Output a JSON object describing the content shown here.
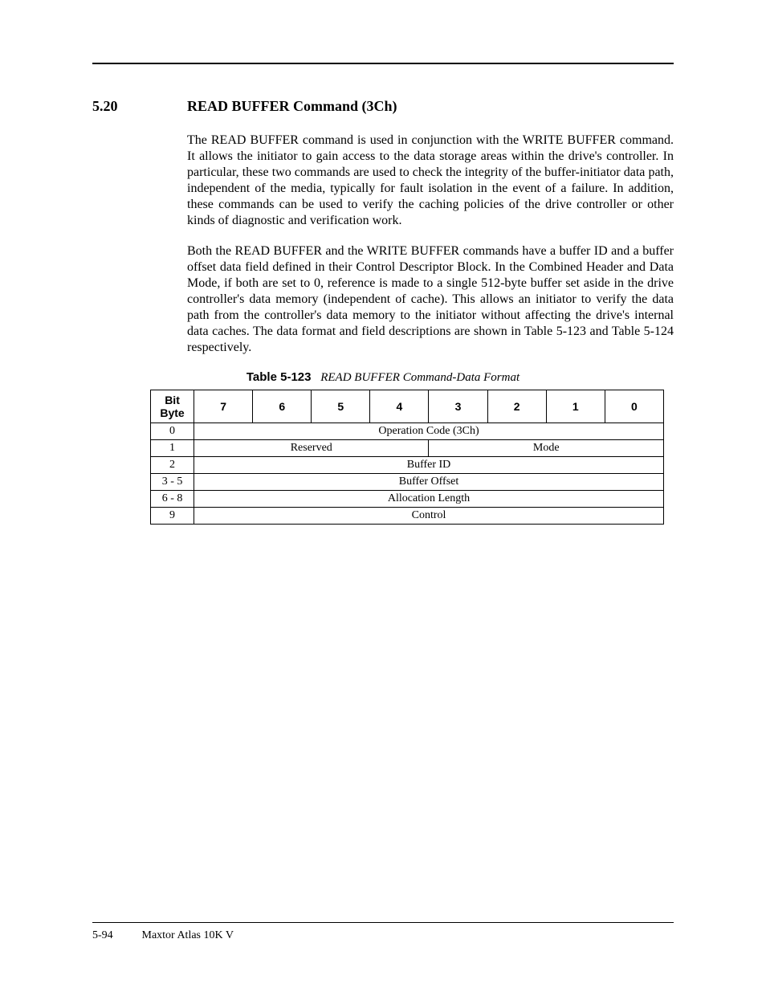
{
  "section": {
    "number": "5.20",
    "title": "READ BUFFER Command (3Ch)"
  },
  "paragraphs": {
    "p1": "The READ BUFFER command is used in conjunction with the WRITE BUFFER command. It allows the initiator to gain access to the data storage areas within the drive's controller. In particular, these two commands are used to check the integrity of the buffer-initiator data path, independent of the media, typically for fault isolation in the event of a failure. In addition, these commands can be used to verify the caching policies of the drive controller or other kinds of diagnostic and verification work.",
    "p2": "Both the READ BUFFER and the WRITE BUFFER commands have a buffer ID and a buffer offset data field defined in their Control Descriptor Block. In the Combined Header and Data Mode, if both are set to 0, reference is made to a single 512-byte buffer set aside in the drive controller's data memory (independent of cache). This allows an initiator to verify the data path from the controller's data memory to the initiator without affecting the drive's internal data caches. The data format and field descriptions are shown in Table 5-123 and Table 5-124 respectively."
  },
  "table": {
    "label": "Table 5-123",
    "title": "READ BUFFER Command-Data Format",
    "type": "table",
    "corner_header_line1": "Bit",
    "corner_header_line2": "Byte",
    "bit_columns": [
      "7",
      "6",
      "5",
      "4",
      "3",
      "2",
      "1",
      "0"
    ],
    "rows": {
      "r0": {
        "byte": "0",
        "span_all": "Operation Code (3Ch)"
      },
      "r1": {
        "byte": "1",
        "left": "Reserved",
        "right": "Mode"
      },
      "r2": {
        "byte": "2",
        "span_all": "Buffer ID"
      },
      "r3": {
        "byte": "3 - 5",
        "span_all": "Buffer Offset"
      },
      "r4": {
        "byte": "6 - 8",
        "span_all": "Allocation Length"
      },
      "r5": {
        "byte": "9",
        "span_all": "Control"
      }
    },
    "border_color": "#000000",
    "background_color": "#ffffff",
    "header_font": "Arial",
    "body_font": "Times New Roman"
  },
  "footer": {
    "page_number": "5-94",
    "doc_title": "Maxtor Atlas 10K V"
  }
}
